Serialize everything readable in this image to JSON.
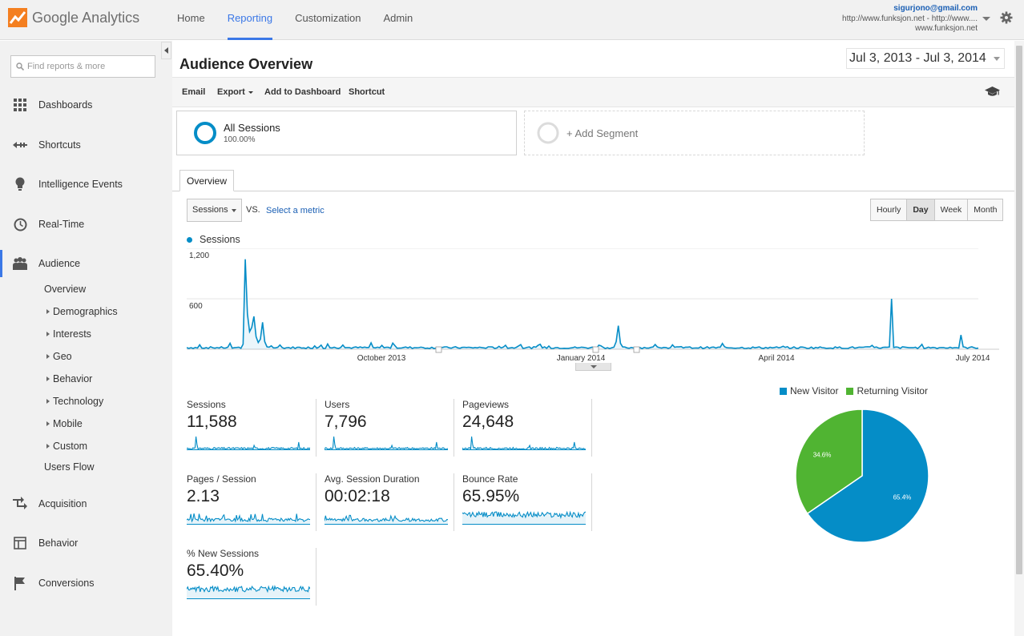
{
  "app": {
    "logo_brand": "Google",
    "logo_product": "Analytics",
    "nav": [
      "Home",
      "Reporting",
      "Customization",
      "Admin"
    ],
    "active_nav": "Reporting",
    "account_email": "sigurjono@gmail.com",
    "account_property": "http://www.funksjon.net - http://www....",
    "account_view": "www.funksjon.net"
  },
  "sidebar": {
    "search_placeholder": "Find reports & more",
    "items": [
      {
        "label": "Dashboards",
        "icon": "grid-icon"
      },
      {
        "label": "Shortcuts",
        "icon": "shortcut-arrow-icon"
      },
      {
        "label": "Intelligence Events",
        "icon": "lightbulb-icon"
      },
      {
        "label": "Real-Time",
        "icon": "clock-icon"
      },
      {
        "label": "Audience",
        "icon": "people-icon"
      },
      {
        "label": "Acquisition",
        "icon": "acquisition-arrows-icon"
      },
      {
        "label": "Behavior",
        "icon": "layout-icon"
      },
      {
        "label": "Conversions",
        "icon": "flag-icon"
      }
    ],
    "audience_sub": [
      "Overview",
      "Demographics",
      "Interests",
      "Geo",
      "Behavior",
      "Technology",
      "Mobile",
      "Custom",
      "Users Flow"
    ]
  },
  "report": {
    "title": "Audience Overview",
    "date_range": "Jul 3, 2013 - Jul 3, 2014",
    "toolbar": {
      "email": "Email",
      "export": "Export",
      "add_dashboard": "Add to Dashboard",
      "shortcut": "Shortcut"
    },
    "segment_all": {
      "name": "All Sessions",
      "pct": "100.00%"
    },
    "segment_add": "+ Add Segment",
    "tab": "Overview",
    "metric_select": "Sessions",
    "vs": "VS.",
    "select_metric": "Select a metric",
    "granularity": [
      "Hourly",
      "Day",
      "Week",
      "Month"
    ],
    "granularity_active": "Day"
  },
  "chart_data": {
    "type": "line",
    "series": [
      {
        "name": "Sessions",
        "color": "#058dc7"
      }
    ],
    "ylim": [
      0,
      1200
    ],
    "y_ticks": [
      "1,200",
      "600"
    ],
    "x_ticks": [
      "October 2013",
      "January 2014",
      "April 2014",
      "July 2014"
    ],
    "note_peaks": [
      {
        "x": "Aug 2013",
        "y": 1070
      },
      {
        "x": "Aug 2013",
        "y": 390
      },
      {
        "x": "Aug 2013",
        "y": 320
      },
      {
        "x": "Jan 2014",
        "y": 280
      },
      {
        "x": "Jun 2014",
        "y": 600
      }
    ]
  },
  "kpis": [
    {
      "label": "Sessions",
      "value": "11,588"
    },
    {
      "label": "Users",
      "value": "7,796"
    },
    {
      "label": "Pageviews",
      "value": "24,648"
    },
    {
      "label": "Pages / Session",
      "value": "2.13"
    },
    {
      "label": "Avg. Session Duration",
      "value": "00:02:18"
    },
    {
      "label": "Bounce Rate",
      "value": "65.95%"
    },
    {
      "label": "% New Sessions",
      "value": "65.40%"
    }
  ],
  "pie": {
    "type": "pie",
    "slices": [
      {
        "label": "New Visitor",
        "value": 65.4,
        "text": "65.4%",
        "color": "#058dc7"
      },
      {
        "label": "Returning Visitor",
        "value": 34.6,
        "text": "34.6%",
        "color": "#50b432"
      }
    ]
  }
}
